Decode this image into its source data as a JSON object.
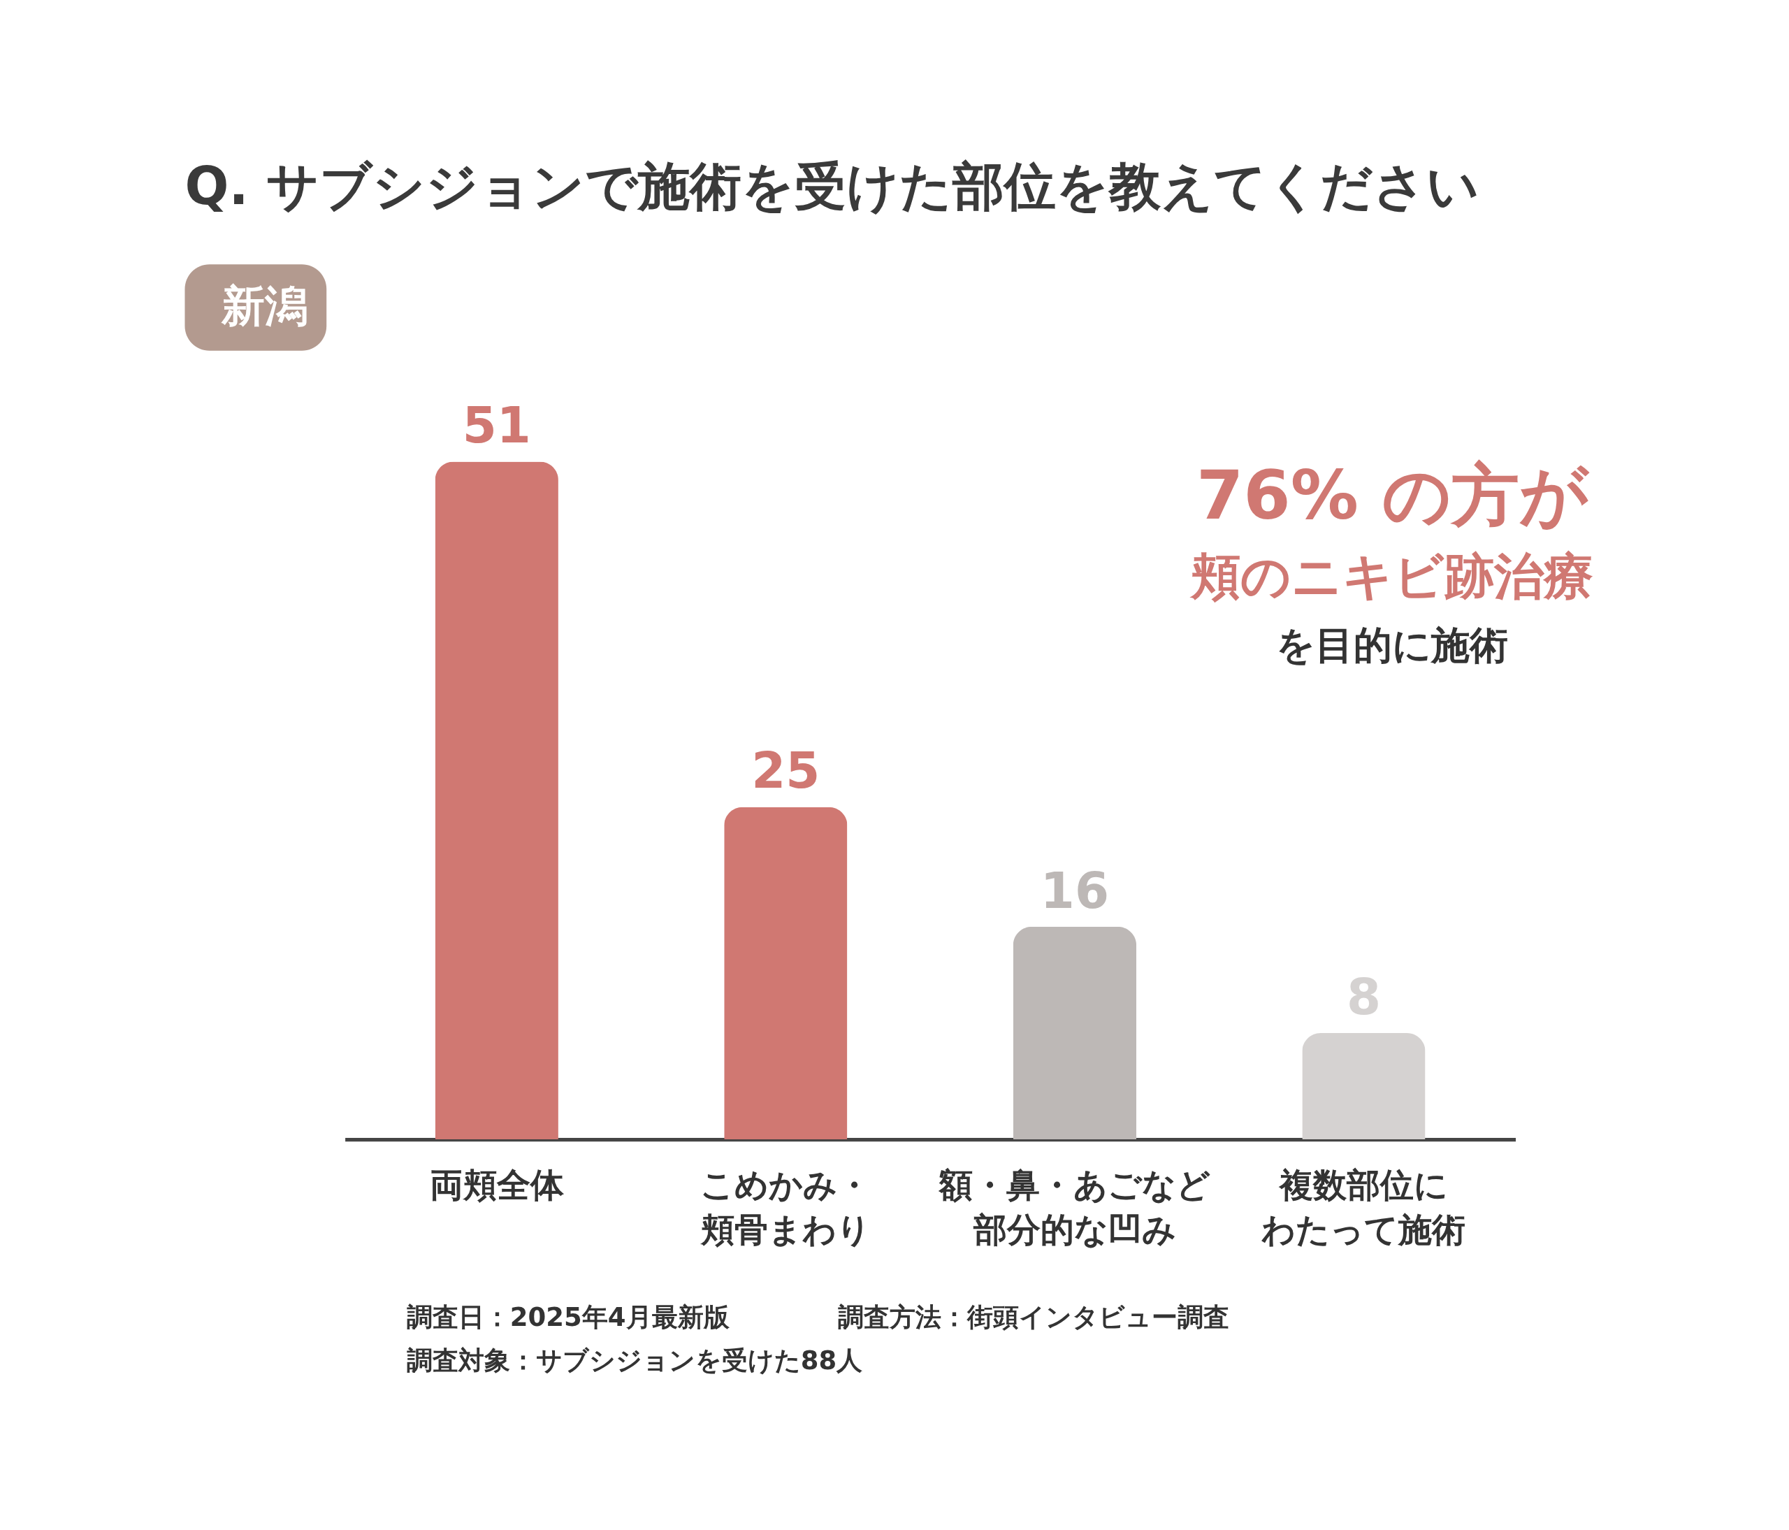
{
  "chart_data": {
    "type": "bar",
    "title": "Q. サブシジョンで施術を受けた部位を教えてください",
    "categories": [
      "両頬全体",
      "こめかみ・頬骨まわり",
      "額・鼻・あごなど部分的な凹み",
      "複数部位にわたって施術"
    ],
    "values": [
      51,
      25,
      16,
      8
    ],
    "colors": [
      "#d07872",
      "#d07872",
      "#bdb8b6",
      "#d5d2d1"
    ],
    "tick_labels": "x",
    "grid": false,
    "data_labels": true,
    "annotations": [
      "新潟",
      "76% の方が",
      "頬のニキビ跡治療",
      "を目的に施術",
      "調査日：2025年4月最新版",
      "調査方法：街頭インタビュー調査",
      "調査対象：サブシジョンを受けた88人"
    ]
  }
}
